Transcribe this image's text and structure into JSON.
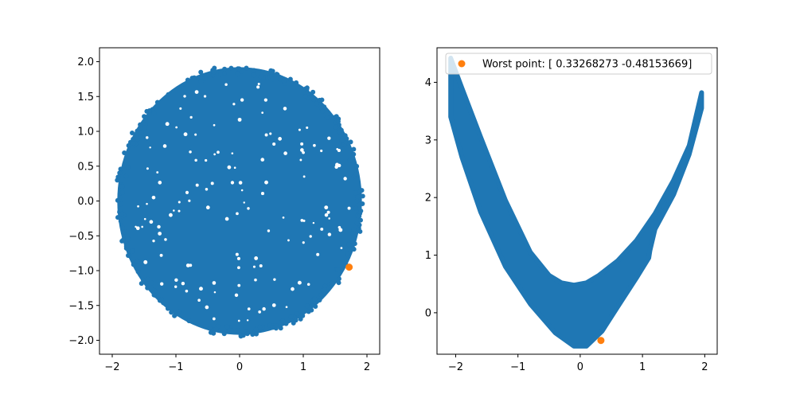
{
  "chart_data": [
    {
      "type": "scatter",
      "title": "",
      "xlabel": "",
      "ylabel": "",
      "xlim": [
        -2.2,
        2.2
      ],
      "ylim": [
        -2.2,
        2.2
      ],
      "xticks": [
        -2,
        -1,
        0,
        1,
        2
      ],
      "yticks": [
        -2.0,
        -1.5,
        -1.0,
        -0.5,
        0.0,
        0.5,
        1.0,
        1.5,
        2.0
      ],
      "xtick_labels": [
        "−2",
        "−1",
        "0",
        "1",
        "2"
      ],
      "ytick_labels": [
        "−2.0",
        "−1.5",
        "−1.0",
        "−0.5",
        "0.0",
        "0.5",
        "1.0",
        "1.5",
        "2.0"
      ],
      "grid": false,
      "series": [
        {
          "shape": "disk",
          "center": [
            0,
            0
          ],
          "radius": 1.95,
          "color": "#1f77b4"
        },
        {
          "points": [
            [
              1.72,
              -0.95
            ]
          ],
          "color": "#ff7f0e"
        }
      ]
    },
    {
      "type": "scatter",
      "title": "",
      "xlabel": "",
      "ylabel": "",
      "xlim": [
        -2.3,
        2.2
      ],
      "ylim": [
        -0.72,
        4.6
      ],
      "xticks": [
        -2,
        -1,
        0,
        1,
        2
      ],
      "yticks": [
        0,
        1,
        2,
        3,
        4
      ],
      "xtick_labels": [
        "−2",
        "−1",
        "0",
        "1",
        "2"
      ],
      "ytick_labels": [
        "0",
        "1",
        "2",
        "3",
        "4"
      ],
      "grid": false,
      "legend": {
        "position": "top-right",
        "entries": [
          "Worst point: [ 0.33268273 -0.48153669]"
        ]
      },
      "series": [
        {
          "shape": "band",
          "color": "#1f77b4",
          "upper": [
            [
              -2.08,
              4.42
            ],
            [
              -1.9,
              3.9
            ],
            [
              -1.6,
              3.05
            ],
            [
              -1.2,
              1.95
            ],
            [
              -0.8,
              1.05
            ],
            [
              -0.5,
              0.65
            ],
            [
              -0.3,
              0.52
            ],
            [
              -0.1,
              0.48
            ],
            [
              0.1,
              0.52
            ],
            [
              0.3,
              0.65
            ],
            [
              0.6,
              0.9
            ],
            [
              0.9,
              1.25
            ],
            [
              1.2,
              1.72
            ],
            [
              1.5,
              2.3
            ],
            [
              1.75,
              2.9
            ],
            [
              1.95,
              3.82
            ]
          ],
          "lower": [
            [
              1.95,
              3.55
            ],
            [
              1.75,
              2.75
            ],
            [
              1.5,
              2.05
            ],
            [
              1.2,
              1.45
            ],
            [
              1.12,
              1.08
            ],
            [
              1.1,
              0.95
            ],
            [
              0.9,
              0.6
            ],
            [
              0.6,
              0.1
            ],
            [
              0.35,
              -0.32
            ],
            [
              0.1,
              -0.58
            ],
            [
              -0.1,
              -0.58
            ],
            [
              -0.4,
              -0.35
            ],
            [
              -0.8,
              0.15
            ],
            [
              -1.2,
              0.8
            ],
            [
              -1.6,
              1.75
            ],
            [
              -1.9,
              2.7
            ],
            [
              -2.08,
              3.4
            ]
          ]
        },
        {
          "name": "Worst point: [ 0.33268273 -0.48153669]",
          "points": [
            [
              0.33268273,
              -0.48153669
            ]
          ],
          "color": "#ff7f0e"
        }
      ]
    }
  ]
}
